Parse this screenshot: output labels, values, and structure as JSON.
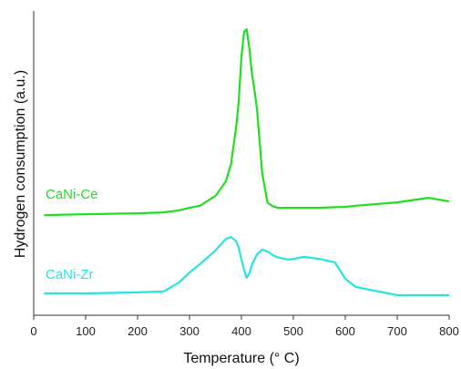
{
  "chart_data": {
    "type": "line",
    "x_label": "Temperature (° C)",
    "y_label": "Hydrogen consumption (a.u.)",
    "xlim": [
      0,
      800
    ],
    "xticks": [
      0,
      100,
      200,
      300,
      400,
      500,
      600,
      700,
      800
    ],
    "ylim": [
      0,
      1
    ],
    "x": [
      20,
      100,
      200,
      250,
      280,
      300,
      320,
      350,
      370,
      380,
      390,
      395,
      400,
      405,
      410,
      415,
      420,
      425,
      430,
      440,
      450,
      460,
      470,
      490,
      500,
      520,
      550,
      580,
      600,
      620,
      700,
      760,
      800
    ],
    "series": [
      {
        "name": "CaNi-Ce",
        "color": "#22dd22",
        "values": [
          0.329,
          0.332,
          0.335,
          0.338,
          0.345,
          0.353,
          0.36,
          0.392,
          0.44,
          0.497,
          0.62,
          0.707,
          0.85,
          0.931,
          0.94,
          0.88,
          0.796,
          0.74,
          0.677,
          0.467,
          0.371,
          0.358,
          0.353,
          0.353,
          0.353,
          0.353,
          0.353,
          0.355,
          0.356,
          0.36,
          0.371,
          0.386,
          0.374
        ]
      },
      {
        "name": "CaNi-Zr",
        "color": "#22e5e5",
        "values": [
          0.072,
          0.072,
          0.075,
          0.078,
          0.108,
          0.14,
          0.168,
          0.213,
          0.251,
          0.257,
          0.243,
          0.22,
          0.183,
          0.15,
          0.123,
          0.138,
          0.165,
          0.183,
          0.2,
          0.216,
          0.21,
          0.198,
          0.19,
          0.183,
          0.185,
          0.192,
          0.185,
          0.174,
          0.12,
          0.093,
          0.066,
          0.066,
          0.066
        ]
      }
    ]
  }
}
